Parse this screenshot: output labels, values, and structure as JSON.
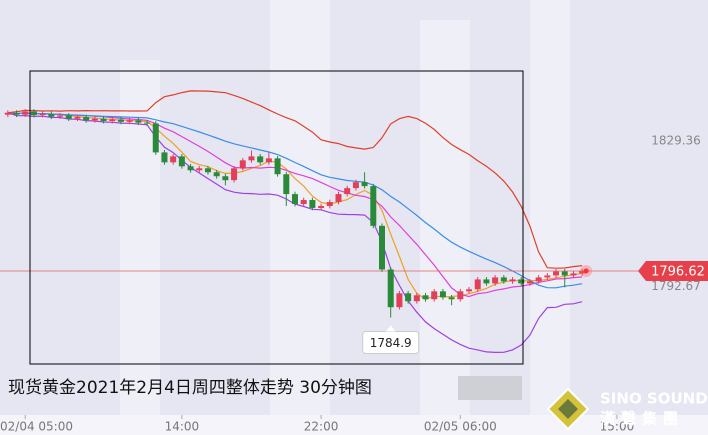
{
  "chart_data": {
    "type": "candlestick",
    "caption": "现货黄金2021年2月4日周四整体走势  30分钟图",
    "watermark": {
      "brand": "SINO SOUND",
      "name": "漢聲集團"
    },
    "xlim": [
      -0.9,
      71.5
    ],
    "xticks": [
      {
        "value": 2,
        "label": "02/04 05:00"
      },
      {
        "value": 20,
        "label": "14:00"
      },
      {
        "value": 36,
        "label": "22:00"
      },
      {
        "value": 52,
        "label": "02/05 06:00"
      },
      {
        "value": 70,
        "label": "15:00"
      }
    ],
    "ylim": [
      1755.3,
      1864.9
    ],
    "yticks": [
      1829.36,
      1792.67
    ],
    "last_price": 1796.62,
    "up_color": "#e0405a",
    "down_color": "#2a8a3a",
    "indicators": [
      {
        "kind": "ma",
        "period": 5,
        "color": "#f0a020"
      },
      {
        "kind": "ma",
        "period": 10,
        "color": "#e040d8"
      },
      {
        "kind": "ma",
        "period": 20,
        "color": "#3a8ee6"
      },
      {
        "kind": "boll_upper",
        "period": 20,
        "k": 2,
        "color": "#e0402a"
      },
      {
        "kind": "boll_lower",
        "period": 20,
        "k": 2,
        "color": "#a040e0"
      }
    ],
    "open": [
      1836.0,
      1836.5,
      1836.0,
      1836.8,
      1835.9,
      1836.2,
      1835.5,
      1835.8,
      1835.0,
      1835.4,
      1834.6,
      1835.0,
      1834.4,
      1834.8,
      1834.2,
      1834.6,
      1834.0,
      1833.8,
      1826.5,
      1824.0,
      1825.5,
      1823.0,
      1822.0,
      1822.5,
      1821.5,
      1820.5,
      1819.5,
      1822.5,
      1824.5,
      1825.5,
      1824.0,
      1825.0,
      1821.0,
      1816.0,
      1813.5,
      1814.5,
      1812.5,
      1813.0,
      1814.0,
      1816.0,
      1817.5,
      1819.0,
      1818.0,
      1808.0,
      1797.0,
      1787.5,
      1791.0,
      1789.0,
      1790.5,
      1789.5,
      1791.5,
      1790.0,
      1789.5,
      1791.5,
      1792.0,
      1794.5,
      1793.5,
      1795.0,
      1794.0,
      1794.5,
      1793.5,
      1794.0,
      1795.0,
      1795.5,
      1796.5,
      1795.5,
      1796.0
    ],
    "high": [
      1837.1,
      1837.1,
      1837.4,
      1837.4,
      1836.8,
      1836.8,
      1836.4,
      1836.4,
      1836.0,
      1836.0,
      1835.6,
      1835.6,
      1835.4,
      1835.4,
      1835.2,
      1835.2,
      1834.6,
      1834.4,
      1827.1,
      1826.1,
      1826.1,
      1823.6,
      1823.1,
      1823.1,
      1822.1,
      1821.1,
      1823.1,
      1825.1,
      1827.0,
      1826.1,
      1826.5,
      1825.6,
      1821.6,
      1816.6,
      1815.1,
      1815.1,
      1813.6,
      1814.6,
      1816.6,
      1818.1,
      1819.6,
      1821.5,
      1818.6,
      1808.6,
      1797.6,
      1791.6,
      1791.6,
      1791.1,
      1791.1,
      1792.1,
      1792.1,
      1790.6,
      1792.1,
      1792.6,
      1795.1,
      1795.1,
      1795.6,
      1795.6,
      1795.1,
      1795.1,
      1794.6,
      1795.6,
      1796.1,
      1797.1,
      1797.1,
      1796.6,
      1797.2
    ],
    "low": [
      1835.4,
      1835.4,
      1835.4,
      1835.3,
      1835.3,
      1834.9,
      1834.9,
      1834.4,
      1834.4,
      1834.0,
      1834.0,
      1833.8,
      1833.8,
      1833.6,
      1833.6,
      1833.4,
      1833.2,
      1825.9,
      1823.4,
      1823.4,
      1822.4,
      1821.4,
      1821.4,
      1820.9,
      1819.9,
      1818.2,
      1818.9,
      1821.9,
      1823.9,
      1823.4,
      1823.4,
      1820.4,
      1813.0,
      1812.9,
      1812.9,
      1811.9,
      1811.9,
      1812.4,
      1813.4,
      1815.4,
      1816.9,
      1817.4,
      1807.4,
      1796.4,
      1784.9,
      1786.9,
      1788.4,
      1788.4,
      1788.9,
      1788.9,
      1789.4,
      1788.0,
      1788.9,
      1790.9,
      1791.4,
      1792.9,
      1792.9,
      1793.4,
      1793.4,
      1792.9,
      1792.9,
      1793.4,
      1794.4,
      1794.9,
      1792.5,
      1794.9,
      1795.4
    ],
    "close": [
      1836.5,
      1836.0,
      1836.8,
      1835.9,
      1836.2,
      1835.5,
      1835.8,
      1835.0,
      1835.4,
      1834.6,
      1835.0,
      1834.4,
      1834.8,
      1834.2,
      1834.6,
      1834.0,
      1833.8,
      1826.5,
      1824.0,
      1825.5,
      1823.0,
      1822.0,
      1822.5,
      1821.5,
      1820.5,
      1819.5,
      1822.5,
      1824.5,
      1825.5,
      1824.0,
      1825.0,
      1821.0,
      1816.0,
      1813.5,
      1814.5,
      1812.5,
      1813.0,
      1814.0,
      1816.0,
      1817.5,
      1819.0,
      1818.0,
      1808.0,
      1797.0,
      1787.5,
      1791.0,
      1789.0,
      1790.5,
      1789.5,
      1791.5,
      1790.0,
      1789.5,
      1791.5,
      1792.0,
      1794.5,
      1793.5,
      1795.0,
      1794.0,
      1794.5,
      1793.5,
      1794.0,
      1795.0,
      1795.5,
      1796.5,
      1795.5,
      1796.0,
      1796.62
    ],
    "low_marker_index": 44
  }
}
